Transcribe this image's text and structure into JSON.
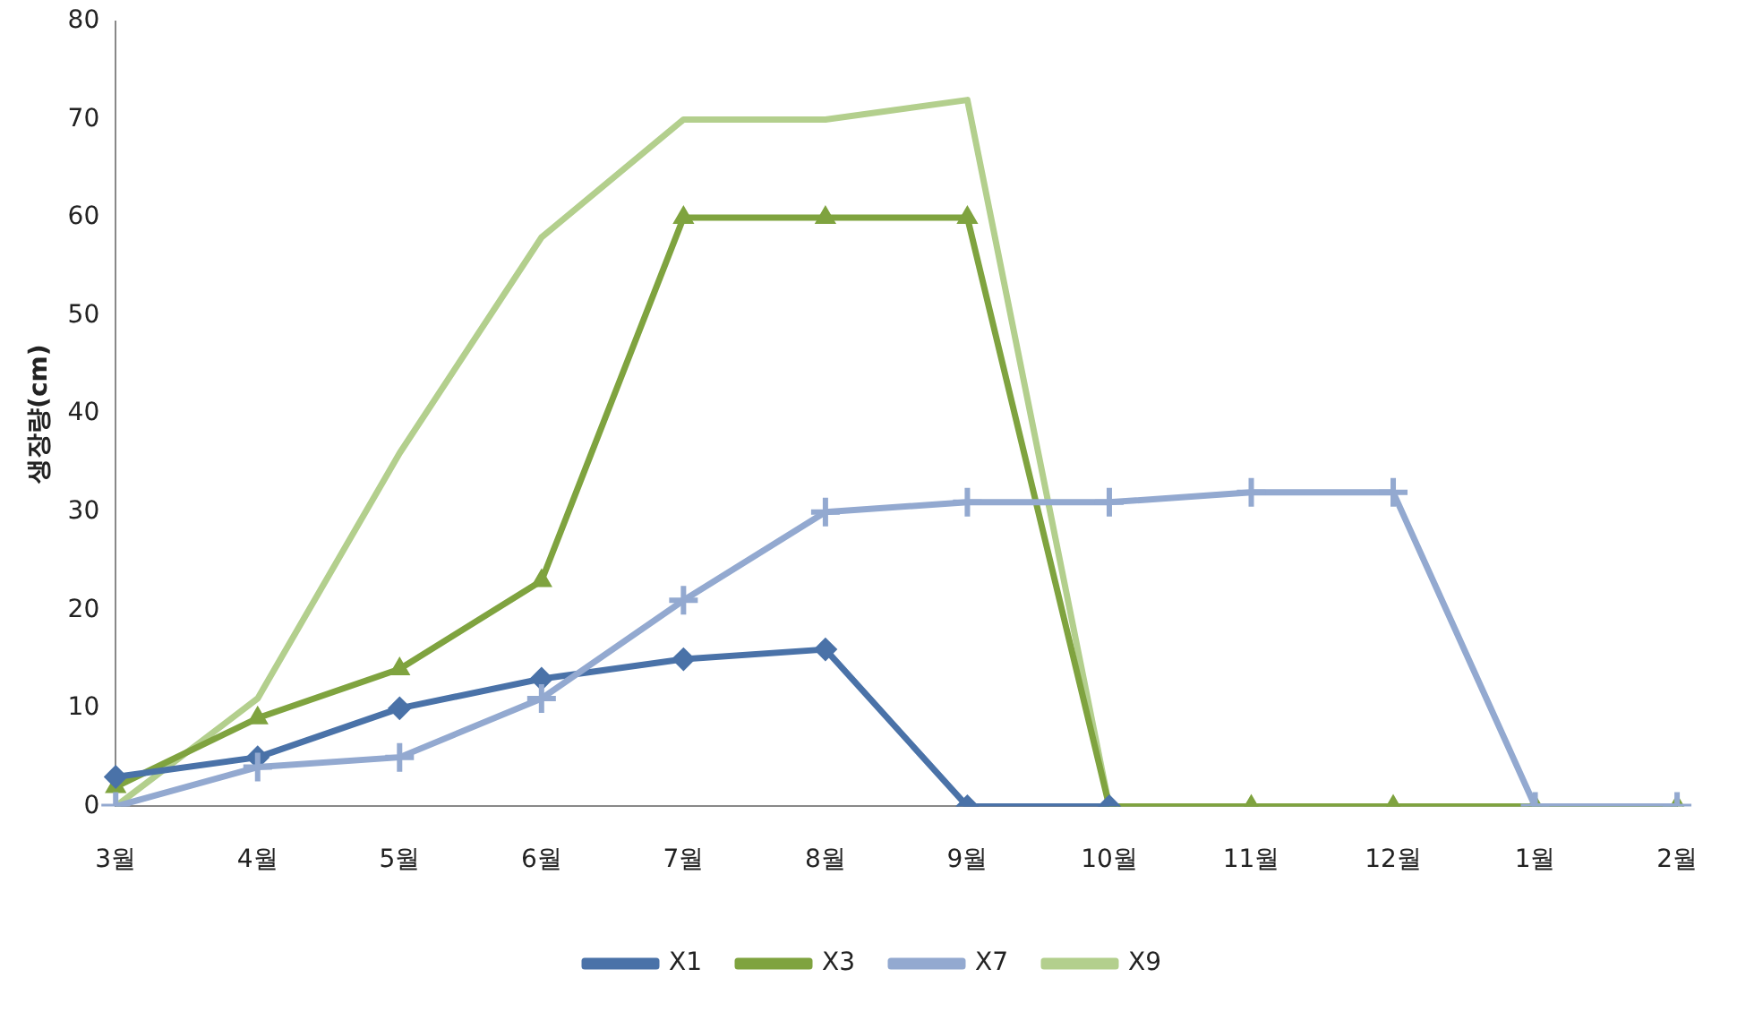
{
  "chart_data": {
    "type": "line",
    "ylabel": "생장량(cm)",
    "categories": [
      "3월",
      "4월",
      "5월",
      "6월",
      "7월",
      "8월",
      "9월",
      "10월",
      "11월",
      "12월",
      "1월",
      "2월"
    ],
    "ylim": [
      0,
      80
    ],
    "yticks": [
      0,
      10,
      20,
      30,
      40,
      50,
      60,
      70,
      80
    ],
    "grid": false,
    "legend": "bottom",
    "line_style": "solid",
    "series": [
      {
        "name": "X1",
        "color": "#4a72a8",
        "marker": "diamond",
        "values": [
          3,
          5,
          10,
          13,
          15,
          16,
          0,
          0,
          null,
          null,
          null,
          null
        ]
      },
      {
        "name": "X3",
        "color": "#7fa33f",
        "marker": "triangle",
        "values": [
          2,
          9,
          14,
          23,
          60,
          60,
          60,
          0,
          0,
          0,
          0,
          0
        ]
      },
      {
        "name": "X7",
        "color": "#93a9d0",
        "marker": "cross",
        "values": [
          0,
          4,
          5,
          11,
          21,
          30,
          31,
          31,
          32,
          32,
          0,
          0
        ]
      },
      {
        "name": "X9",
        "color": "#b3cf8d",
        "marker": "none",
        "values": [
          0,
          11,
          36,
          58,
          70,
          70,
          72,
          0,
          0,
          0,
          0,
          0
        ]
      }
    ]
  }
}
